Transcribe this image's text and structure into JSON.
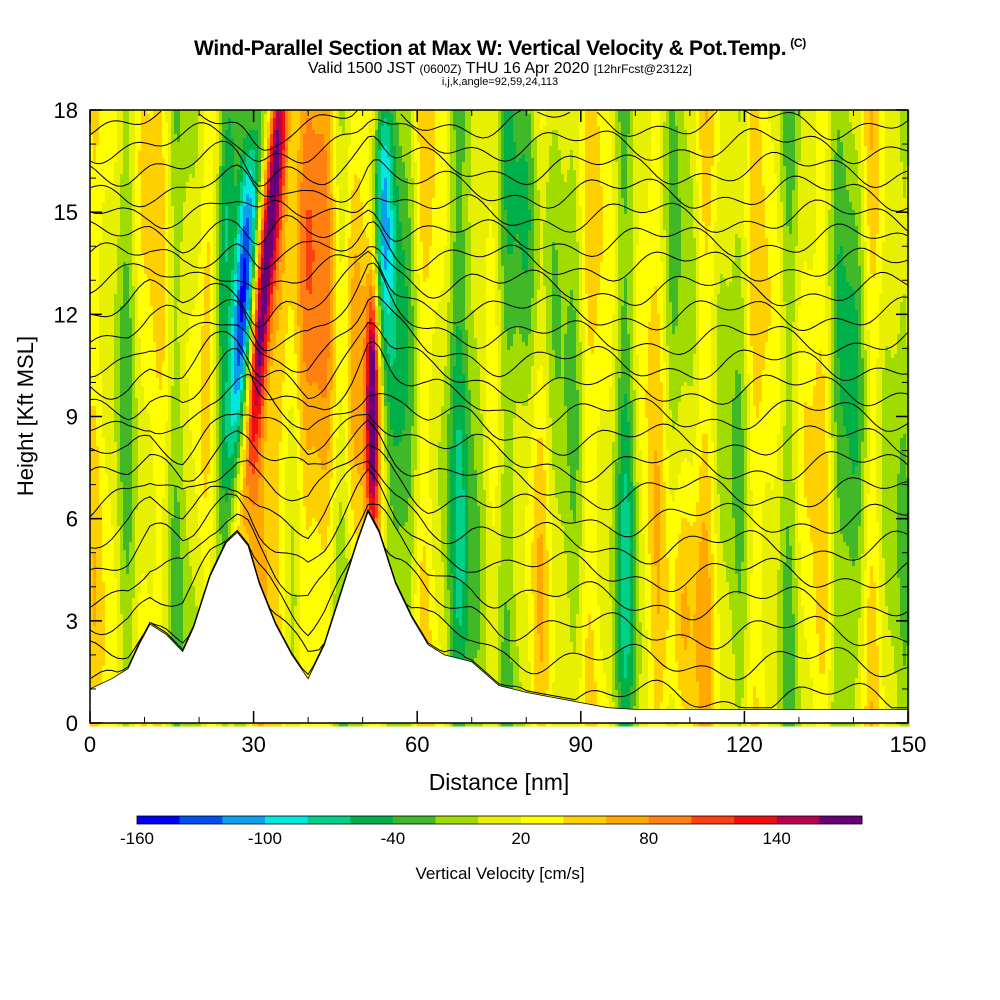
{
  "chart_data": {
    "type": "heatmap",
    "title": "Wind-Parallel Section at Max W: Vertical Velocity & Pot.Temp.",
    "title_mark": "(C)",
    "subtitle": {
      "valid": "Valid 1500 JST",
      "zulu": "(0600Z)",
      "date": "THU 16 Apr 2020",
      "forecast": "[12hrFcst@2312z]"
    },
    "params": "i,j,k,angle=92,59,24,113",
    "xlabel": "Distance [nm]",
    "ylabel": "Height [Kft MSL]",
    "xlim": [
      0,
      150
    ],
    "ylim": [
      0,
      18
    ],
    "xticks": [
      0,
      30,
      60,
      90,
      120,
      150
    ],
    "yticks": [
      0,
      3,
      6,
      9,
      12,
      15,
      18
    ],
    "x_minor_step": 10,
    "y_minor_step": 1,
    "terrain": [
      [
        0,
        1.0
      ],
      [
        4,
        1.3
      ],
      [
        7,
        1.6
      ],
      [
        9,
        2.3
      ],
      [
        11,
        2.9
      ],
      [
        14,
        2.6
      ],
      [
        17,
        2.1
      ],
      [
        19,
        2.8
      ],
      [
        22,
        4.3
      ],
      [
        25,
        5.3
      ],
      [
        27,
        5.6
      ],
      [
        29,
        5.2
      ],
      [
        31,
        4.1
      ],
      [
        34,
        2.9
      ],
      [
        37,
        2.0
      ],
      [
        40,
        1.3
      ],
      [
        43,
        2.3
      ],
      [
        46,
        3.8
      ],
      [
        49,
        5.3
      ],
      [
        51,
        6.2
      ],
      [
        53,
        5.6
      ],
      [
        56,
        4.1
      ],
      [
        59,
        3.1
      ],
      [
        62,
        2.3
      ],
      [
        65,
        2.0
      ],
      [
        70,
        1.8
      ],
      [
        75,
        1.1
      ],
      [
        80,
        0.9
      ],
      [
        85,
        0.75
      ],
      [
        90,
        0.6
      ],
      [
        95,
        0.45
      ],
      [
        100,
        0.4
      ],
      [
        150,
        0.4
      ]
    ],
    "velocity_features": [
      {
        "x": 28.0,
        "z": 13.5,
        "w": -130,
        "sx": 1.6,
        "sz": 5.5,
        "tilt": 0.09
      },
      {
        "x": 31.5,
        "z": 13.5,
        "w": 140,
        "sx": 1.3,
        "sz": 5.5,
        "tilt": 0.09
      },
      {
        "x": 24.0,
        "z": 13.0,
        "w": -45,
        "sx": 1.0,
        "sz": 6.0,
        "tilt": 0.05
      },
      {
        "x": 38.5,
        "z": 13.0,
        "w": 60,
        "sx": 5.0,
        "sz": 7.0,
        "tilt": 0.05
      },
      {
        "x": 51.8,
        "z": 9.5,
        "w": 160,
        "sx": 0.8,
        "sz": 2.4,
        "tilt": 0.0
      },
      {
        "x": 53.5,
        "z": 15.0,
        "w": -110,
        "sx": 1.3,
        "sz": 3.0,
        "tilt": 0.0
      },
      {
        "x": 49.0,
        "z": 12.0,
        "w": 55,
        "sx": 1.5,
        "sz": 5.0,
        "tilt": 0.0
      },
      {
        "x": 56.0,
        "z": 10.0,
        "w": -40,
        "sx": 1.5,
        "sz": 6.0,
        "tilt": 0.0
      },
      {
        "x": 70.0,
        "z": 8.0,
        "w": -50,
        "sx": 3.0,
        "sz": 7.0,
        "tilt": 0.0
      },
      {
        "x": 81.0,
        "z": 15.0,
        "w": -40,
        "sx": 3.0,
        "sz": 4.0,
        "tilt": 0.0
      },
      {
        "x": 99.0,
        "z": 6.0,
        "w": -50,
        "sx": 1.5,
        "sz": 5.0,
        "tilt": 0.0
      },
      {
        "x": 108.0,
        "z": 2.5,
        "w": 50,
        "sx": 3.0,
        "sz": 3.0,
        "tilt": 0.0
      },
      {
        "x": 140.0,
        "z": 8.0,
        "w": -40,
        "sx": 2.0,
        "sz": 6.0,
        "tilt": 0.0
      }
    ],
    "theta_levels": [
      6,
      8,
      10,
      12,
      14,
      16,
      18,
      20,
      22,
      24,
      26,
      28,
      30,
      32,
      34,
      36,
      38,
      40,
      42,
      44,
      46,
      48,
      50
    ],
    "colorbar": {
      "label": "Vertical Velocity [cm/s]",
      "levels": [
        -160,
        -140,
        -120,
        -100,
        -80,
        -60,
        -40,
        -20,
        0,
        20,
        40,
        60,
        80,
        100,
        120,
        140,
        160,
        180
      ],
      "tick_labels": [
        "-160",
        "-100",
        "-40",
        "20",
        "80",
        "140"
      ],
      "colors": [
        "#0000ee",
        "#0050f0",
        "#0aa0ee",
        "#00e8e0",
        "#00d08a",
        "#00b048",
        "#40b828",
        "#a0dc00",
        "#e6f000",
        "#ffff00",
        "#ffd000",
        "#ffa800",
        "#ff8010",
        "#ff4010",
        "#ee1010",
        "#b80050",
        "#6a0078"
      ]
    }
  }
}
